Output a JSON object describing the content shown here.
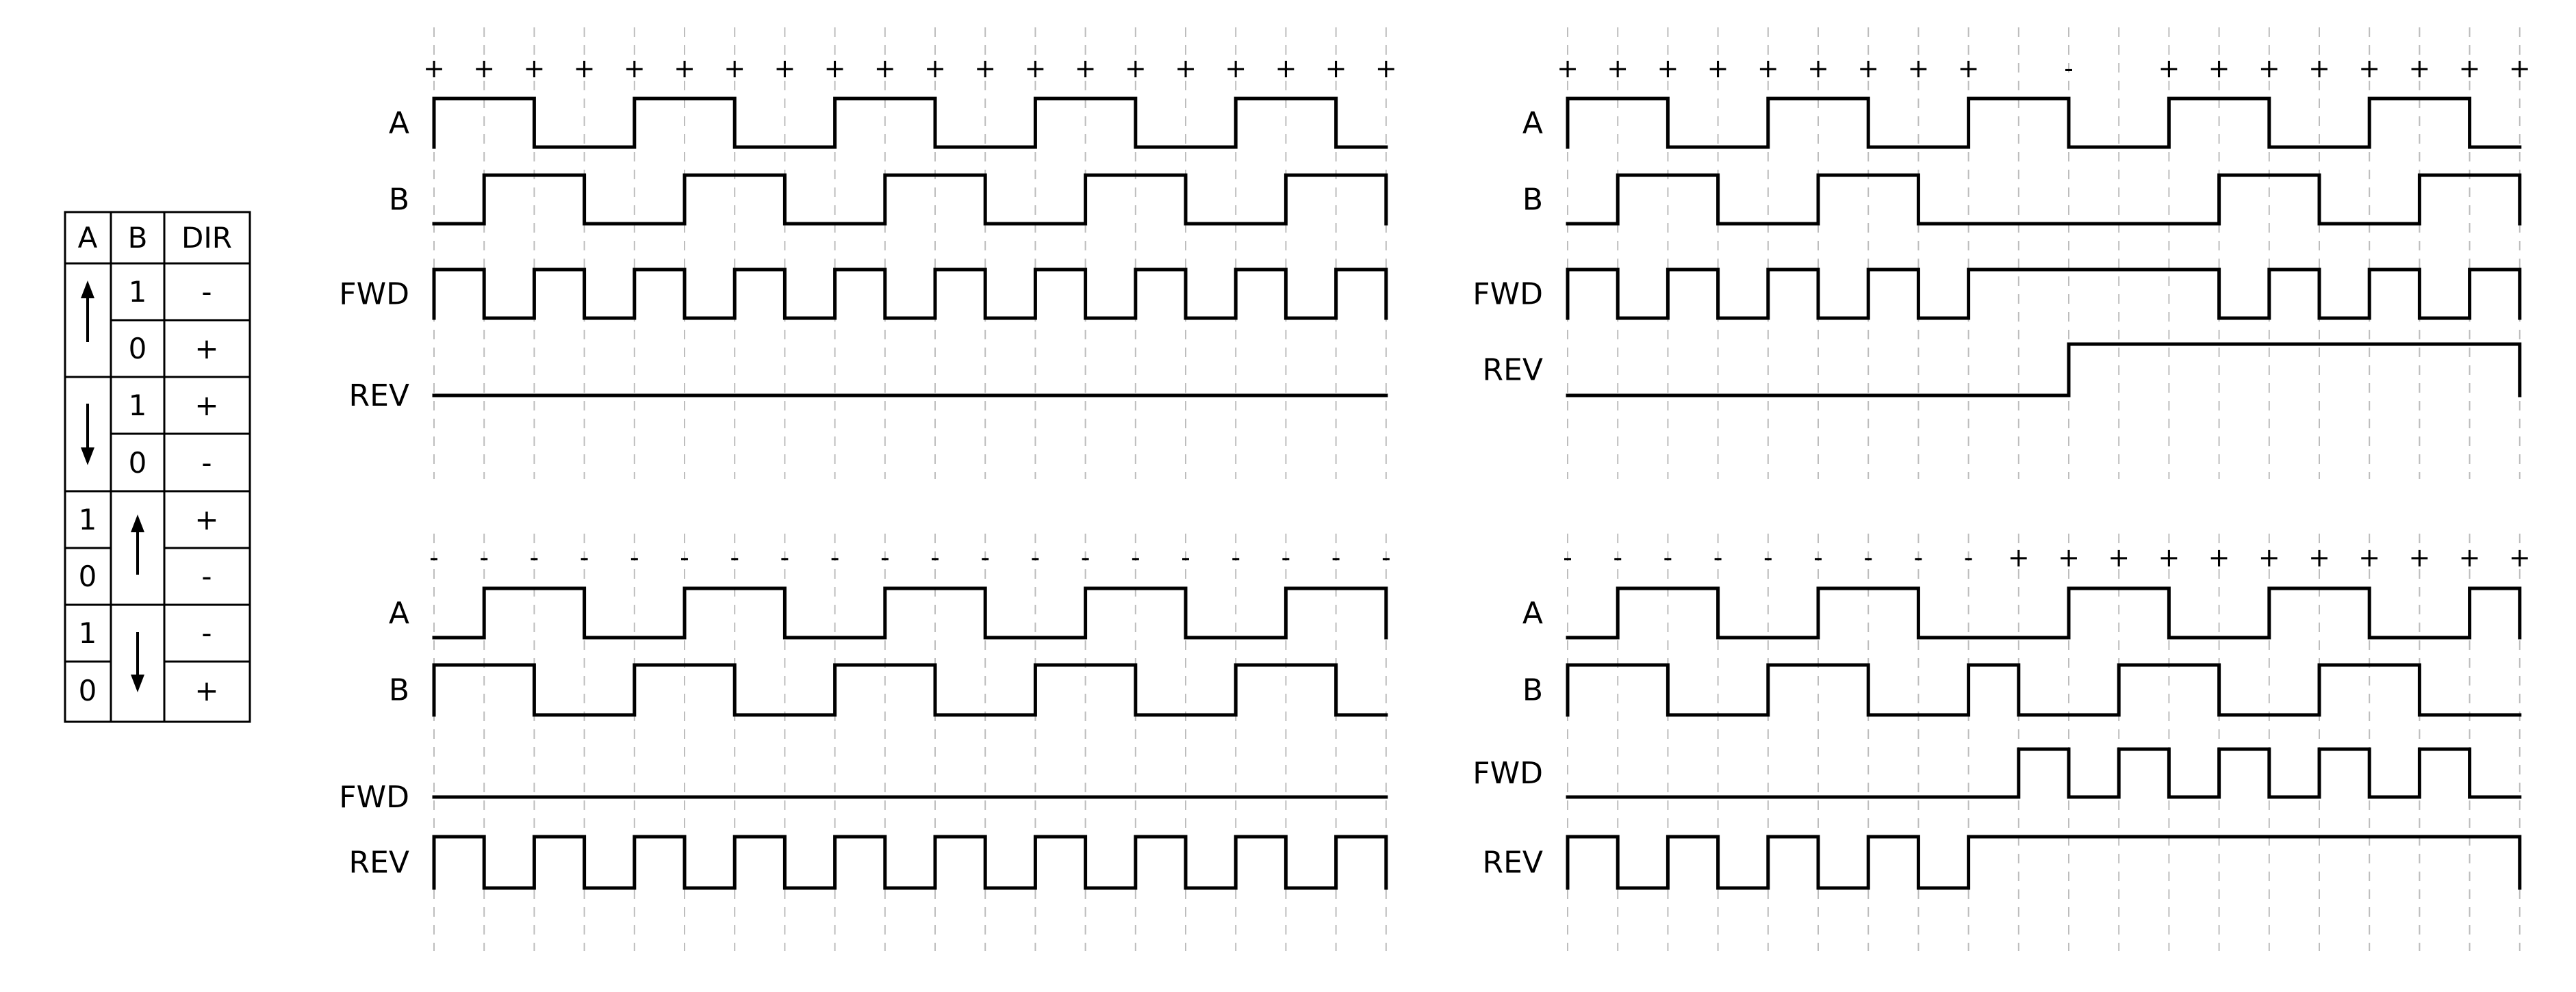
{
  "truth_table": {
    "headers": [
      "A",
      "B",
      "DIR"
    ],
    "rows": [
      {
        "a": "rise",
        "b": "1",
        "dir": "-"
      },
      {
        "a": "rise",
        "b": "0",
        "dir": "+"
      },
      {
        "a": "fall",
        "b": "1",
        "dir": "+"
      },
      {
        "a": "fall",
        "b": "0",
        "dir": "-"
      },
      {
        "a": "1",
        "b": "rise",
        "dir": "+"
      },
      {
        "a": "0",
        "b": "rise",
        "dir": "-"
      },
      {
        "a": "1",
        "b": "fall",
        "dir": "-"
      },
      {
        "a": "0",
        "b": "fall",
        "dir": "+"
      }
    ]
  },
  "panels": [
    {
      "id": "top-left",
      "signs": [
        "+",
        "+",
        "+",
        "+",
        "+",
        "+",
        "+",
        "+",
        "+",
        "+",
        "+",
        "+",
        "+",
        "+",
        "+",
        "+",
        "+",
        "+",
        "+",
        "+"
      ],
      "signals": [
        {
          "name": "A",
          "levels": [
            1,
            1,
            0,
            0,
            1,
            1,
            0,
            0,
            1,
            1,
            0,
            0,
            1,
            1,
            0,
            0,
            1,
            1,
            0
          ]
        },
        {
          "name": "B",
          "levels": [
            0,
            1,
            1,
            0,
            0,
            1,
            1,
            0,
            0,
            1,
            1,
            0,
            0,
            1,
            1,
            0,
            0,
            1,
            1
          ]
        },
        {
          "name": "FWD",
          "levels": [
            1,
            0,
            1,
            0,
            1,
            0,
            1,
            0,
            1,
            0,
            1,
            0,
            1,
            0,
            1,
            0,
            1,
            0,
            1
          ]
        },
        {
          "name": "REV",
          "levels": [
            0,
            0,
            0,
            0,
            0,
            0,
            0,
            0,
            0,
            0,
            0,
            0,
            0,
            0,
            0,
            0,
            0,
            0,
            0
          ]
        }
      ]
    },
    {
      "id": "top-right",
      "signs": [
        "+",
        "+",
        "+",
        "+",
        "+",
        "+",
        "+",
        "+",
        "+",
        "",
        "-",
        "",
        "+",
        "+",
        "+",
        "+",
        "+",
        "+",
        "+",
        "+"
      ],
      "signals": [
        {
          "name": "A",
          "levels": [
            1,
            1,
            0,
            0,
            1,
            1,
            0,
            0,
            1,
            1,
            0,
            0,
            1,
            1,
            0,
            0,
            1,
            1,
            0
          ]
        },
        {
          "name": "B",
          "levels": [
            0,
            1,
            1,
            0,
            0,
            1,
            1,
            0,
            0,
            0,
            0,
            0,
            0,
            1,
            1,
            0,
            0,
            1,
            1
          ]
        },
        {
          "name": "FWD",
          "levels": [
            1,
            0,
            1,
            0,
            1,
            0,
            1,
            0,
            1,
            1,
            1,
            1,
            1,
            0,
            1,
            0,
            1,
            0,
            1
          ]
        },
        {
          "name": "REV",
          "levels": [
            0,
            0,
            0,
            0,
            0,
            0,
            0,
            0,
            0,
            0,
            1,
            1,
            1,
            1,
            1,
            1,
            1,
            1,
            1
          ]
        }
      ]
    },
    {
      "id": "bottom-left",
      "signs": [
        "-",
        "-",
        "-",
        "-",
        "-",
        "-",
        "-",
        "-",
        "-",
        "-",
        "-",
        "-",
        "-",
        "-",
        "-",
        "-",
        "-",
        "-",
        "-",
        "-"
      ],
      "signals": [
        {
          "name": "A",
          "levels": [
            0,
            1,
            1,
            0,
            0,
            1,
            1,
            0,
            0,
            1,
            1,
            0,
            0,
            1,
            1,
            0,
            0,
            1,
            1
          ]
        },
        {
          "name": "B",
          "levels": [
            1,
            1,
            0,
            0,
            1,
            1,
            0,
            0,
            1,
            1,
            0,
            0,
            1,
            1,
            0,
            0,
            1,
            1,
            0
          ]
        },
        {
          "name": "FWD",
          "levels": [
            0,
            0,
            0,
            0,
            0,
            0,
            0,
            0,
            0,
            0,
            0,
            0,
            0,
            0,
            0,
            0,
            0,
            0,
            0
          ]
        },
        {
          "name": "REV",
          "levels": [
            1,
            0,
            1,
            0,
            1,
            0,
            1,
            0,
            1,
            0,
            1,
            0,
            1,
            0,
            1,
            0,
            1,
            0,
            1
          ]
        }
      ]
    },
    {
      "id": "bottom-right",
      "signs": [
        "-",
        "-",
        "-",
        "-",
        "-",
        "-",
        "-",
        "-",
        "-",
        "+",
        "+",
        "+",
        "+",
        "+",
        "+",
        "+",
        "+",
        "+",
        "+",
        "+"
      ],
      "signals": [
        {
          "name": "A",
          "levels": [
            0,
            1,
            1,
            0,
            0,
            1,
            1,
            0,
            0,
            0,
            1,
            1,
            0,
            0,
            1,
            1,
            0,
            0,
            1
          ]
        },
        {
          "name": "B",
          "levels": [
            1,
            1,
            0,
            0,
            1,
            1,
            0,
            0,
            1,
            0,
            0,
            1,
            1,
            0,
            0,
            1,
            1,
            0,
            0
          ]
        },
        {
          "name": "FWD",
          "levels": [
            0,
            0,
            0,
            0,
            0,
            0,
            0,
            0,
            0,
            1,
            0,
            1,
            0,
            1,
            0,
            1,
            0,
            1,
            0
          ]
        },
        {
          "name": "REV",
          "levels": [
            1,
            0,
            1,
            0,
            1,
            0,
            1,
            0,
            1,
            1,
            1,
            1,
            1,
            1,
            1,
            1,
            1,
            1,
            1
          ]
        }
      ]
    }
  ]
}
